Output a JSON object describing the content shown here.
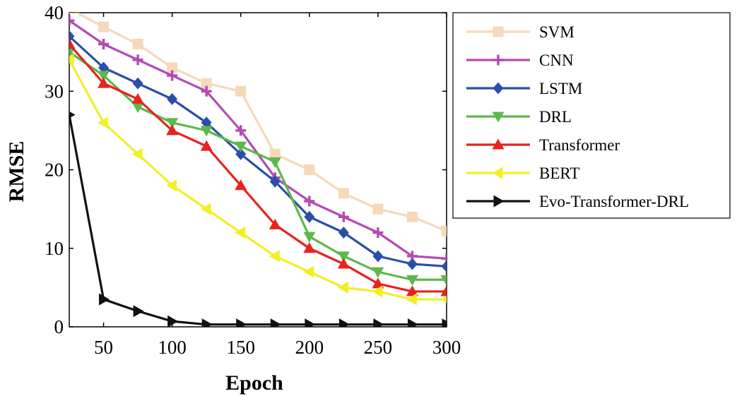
{
  "chart_data": {
    "type": "line",
    "title": "",
    "xlabel": "Epoch",
    "ylabel": "RMSE",
    "xlim": [
      25,
      300
    ],
    "ylim": [
      0,
      40
    ],
    "xticks": [
      50,
      100,
      150,
      200,
      250,
      300
    ],
    "yticks": [
      0,
      10,
      20,
      30,
      40
    ],
    "grid": false,
    "legend_position": "top-right outside",
    "x": [
      25,
      50,
      75,
      100,
      125,
      150,
      175,
      200,
      225,
      250,
      275,
      300
    ],
    "series": [
      {
        "name": "SVM",
        "color": "#f5d9b8",
        "marker": "square",
        "values": [
          40.5,
          38.2,
          36,
          33,
          31,
          30,
          22,
          20,
          17,
          15,
          14,
          12.2
        ]
      },
      {
        "name": "CNN",
        "color": "#b44bb3",
        "marker": "plus",
        "values": [
          39,
          36,
          34,
          32,
          30,
          25,
          19,
          16,
          14,
          12,
          9,
          8.7
        ]
      },
      {
        "name": "LSTM",
        "color": "#2a4fa8",
        "marker": "diamond",
        "values": [
          37,
          33,
          31,
          29,
          26,
          22,
          18.5,
          14,
          12,
          9,
          8,
          7.7
        ]
      },
      {
        "name": "DRL",
        "color": "#5db84a",
        "marker": "triangle-down",
        "values": [
          35,
          32,
          28,
          26,
          25,
          23,
          21,
          11.5,
          9,
          7,
          6,
          6
        ]
      },
      {
        "name": "Transformer",
        "color": "#e8221f",
        "marker": "triangle-up",
        "values": [
          36,
          31,
          29,
          25,
          23,
          18,
          13,
          10,
          8,
          5.5,
          4.5,
          4.5
        ]
      },
      {
        "name": "BERT",
        "color": "#f2ef28",
        "marker": "triangle-left",
        "values": [
          34,
          26,
          22,
          18,
          15,
          12,
          9,
          7,
          5,
          4.5,
          3.5,
          3.5
        ]
      },
      {
        "name": "Evo-Transformer-DRL",
        "color": "#111111",
        "marker": "triangle-right",
        "values": [
          27,
          3.5,
          2,
          0.7,
          0.3,
          0.3,
          0.3,
          0.3,
          0.3,
          0.3,
          0.3,
          0.3
        ]
      }
    ]
  }
}
